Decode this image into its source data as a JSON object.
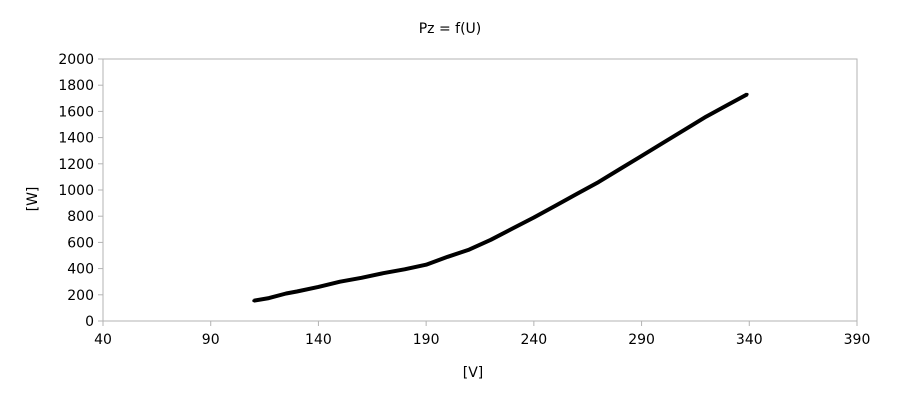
{
  "chart_data": {
    "type": "line",
    "title": "Pz = f(U)",
    "xlabel": "[V]",
    "ylabel": "[W]",
    "xlim": [
      40,
      390
    ],
    "ylim": [
      0,
      2000
    ],
    "xticks": [
      40,
      90,
      140,
      190,
      240,
      290,
      340,
      390
    ],
    "yticks": [
      0,
      200,
      400,
      600,
      800,
      1000,
      1200,
      1400,
      1600,
      1800,
      2000
    ],
    "grid": false,
    "legend": "none",
    "series": [
      {
        "color": "#000000",
        "x": [
          110,
          117,
          125,
          130,
          140,
          150,
          160,
          170,
          180,
          190,
          200,
          210,
          220,
          230,
          240,
          250,
          260,
          270,
          280,
          290,
          300,
          310,
          320,
          330,
          339
        ],
        "y": [
          155,
          175,
          210,
          225,
          260,
          300,
          330,
          365,
          395,
          430,
          490,
          545,
          620,
          705,
          790,
          880,
          970,
          1060,
          1160,
          1260,
          1360,
          1460,
          1560,
          1650,
          1730
        ]
      }
    ]
  }
}
